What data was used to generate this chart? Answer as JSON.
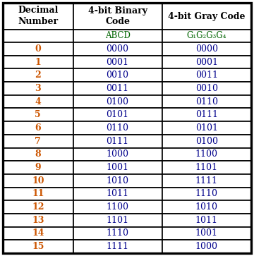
{
  "col_headers": [
    "Decimal\nNumber",
    "4-bit Binary\nCode",
    "4-bit Gray Code"
  ],
  "sub_headers": [
    "",
    "ABCD",
    "G₁G₂G₃G₄"
  ],
  "rows": [
    [
      "0",
      "0000",
      "0000"
    ],
    [
      "1",
      "0001",
      "0001"
    ],
    [
      "2",
      "0010",
      "0011"
    ],
    [
      "3",
      "0011",
      "0010"
    ],
    [
      "4",
      "0100",
      "0110"
    ],
    [
      "5",
      "0101",
      "0111"
    ],
    [
      "6",
      "0110",
      "0101"
    ],
    [
      "7",
      "0111",
      "0100"
    ],
    [
      "8",
      "1000",
      "1100"
    ],
    [
      "9",
      "1001",
      "1101"
    ],
    [
      "10",
      "1010",
      "1111"
    ],
    [
      "11",
      "1011",
      "1110"
    ],
    [
      "12",
      "1100",
      "1010"
    ],
    [
      "13",
      "1101",
      "1011"
    ],
    [
      "14",
      "1110",
      "1001"
    ],
    [
      "15",
      "1111",
      "1000"
    ]
  ],
  "bg_color": "#ffffff",
  "border_color": "#000000",
  "header_text_color": "#000000",
  "decimal_text_color": "#cc5500",
  "binary_text_color": "#00008b",
  "subheader_text_color": "#006400",
  "header_fontsize": 9.0,
  "data_fontsize": 9.0,
  "sub_fontsize": 8.5,
  "lw": 1.2
}
